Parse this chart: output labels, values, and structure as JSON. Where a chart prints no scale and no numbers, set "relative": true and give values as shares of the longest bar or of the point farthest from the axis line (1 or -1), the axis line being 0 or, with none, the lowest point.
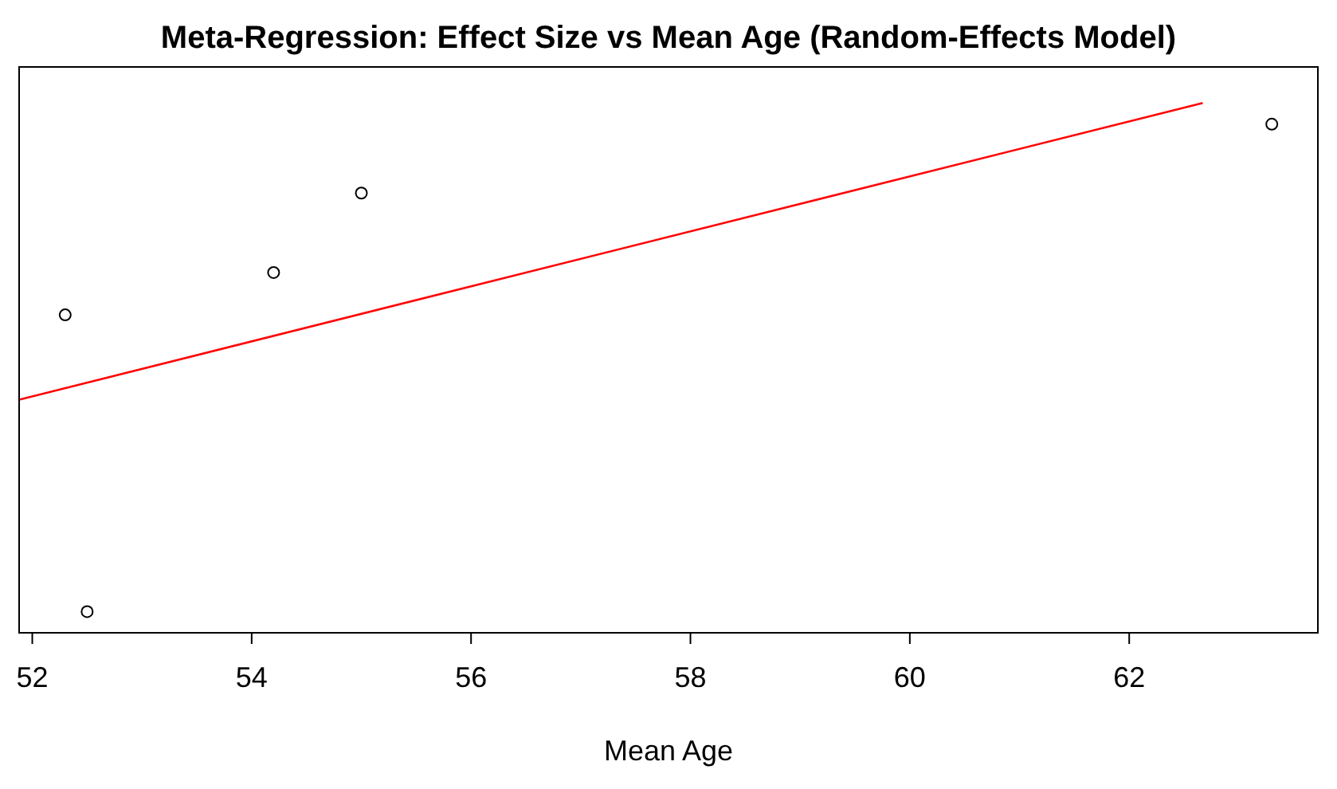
{
  "chart_data": {
    "type": "scatter",
    "title": "Meta-Regression: Effect Size vs Mean Age (Random-Effects Model)",
    "xlabel": "Mean Age",
    "relative": true,
    "xlim": [
      51.88,
      63.72
    ],
    "xticks": [
      52,
      54,
      56,
      58,
      60,
      62
    ],
    "tick_labels": "x",
    "grid": false,
    "marker": "circle",
    "series": [
      {
        "color": "#000000",
        "x": [
          52.3,
          52.5,
          54.2,
          55.0,
          63.3
        ],
        "values": [
          0.6,
          0.04,
          0.68,
          0.83,
          0.96
        ]
      },
      {
        "type": "line",
        "color": "#ff0000",
        "marker": "none",
        "line_style": "solid",
        "x": [
          51.88,
          62.67
        ],
        "values": [
          0.44,
          1
        ]
      }
    ]
  }
}
